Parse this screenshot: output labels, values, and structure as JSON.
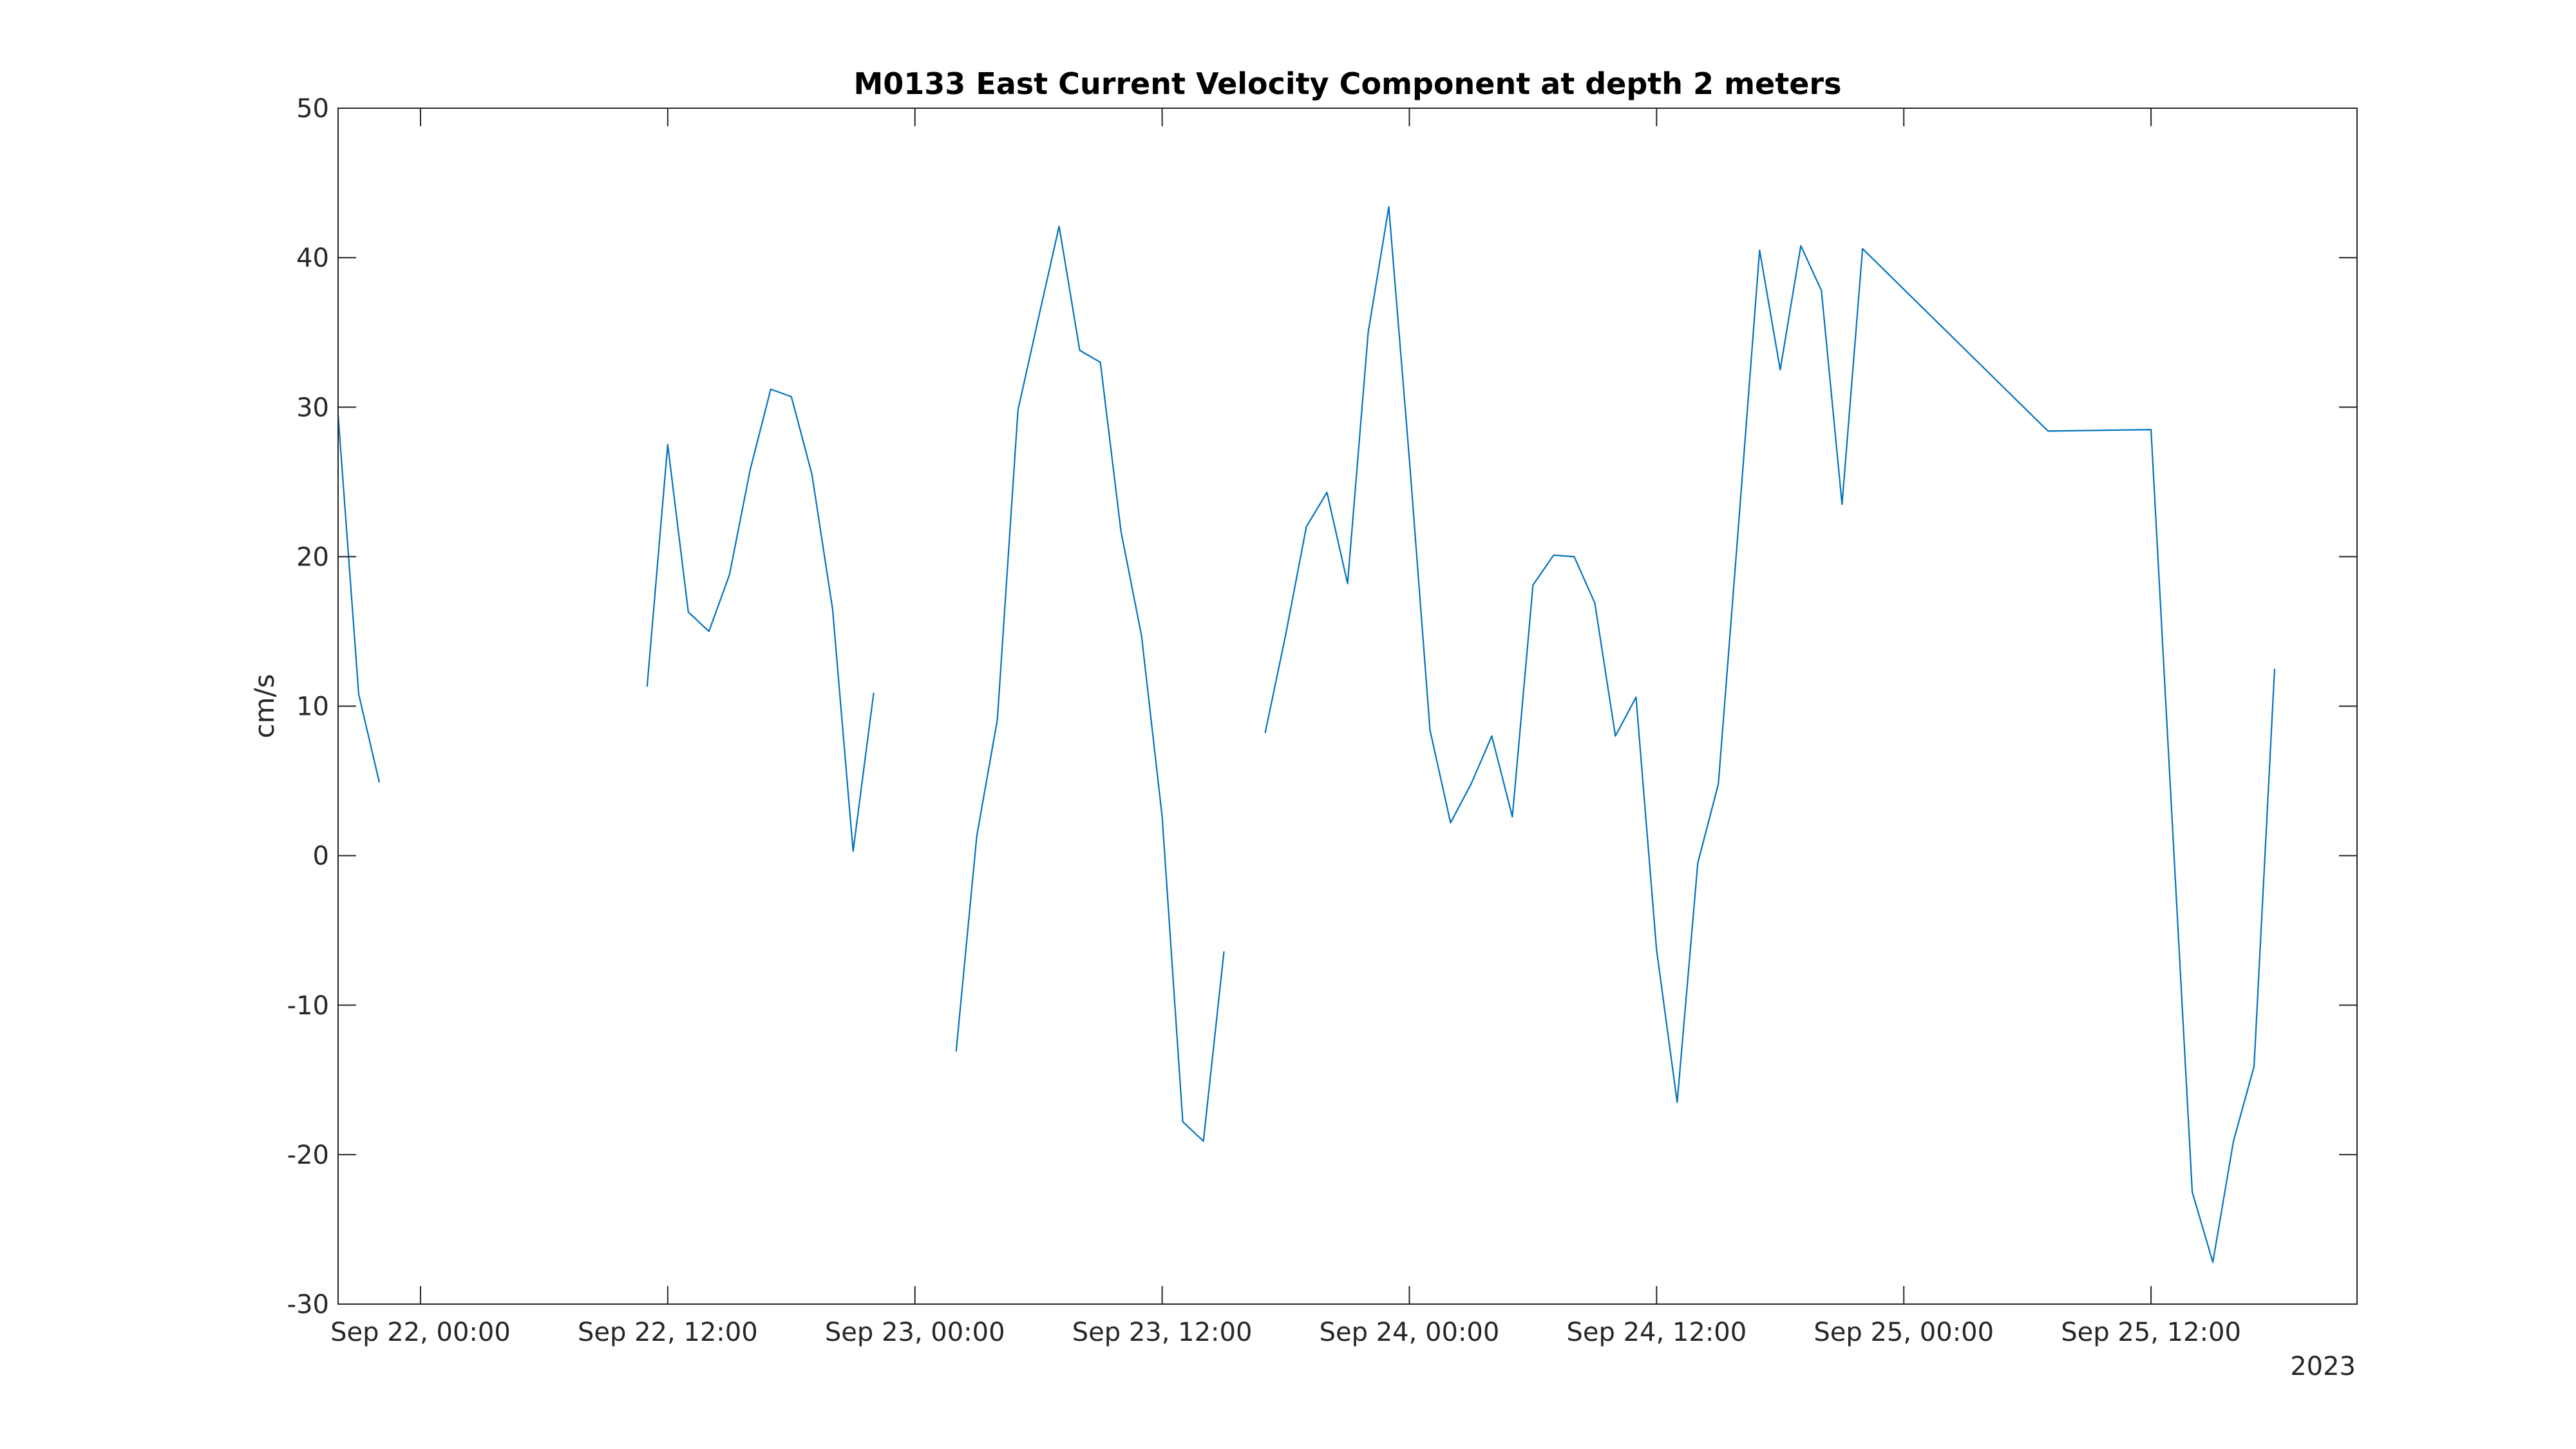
{
  "chart_data": {
    "type": "line",
    "title": "M0133 East Current Velocity Component at depth 2 meters",
    "xlabel": "",
    "ylabel": "cm/s",
    "x_year_label": "2023",
    "xlim": [
      "2023-09-21 20:00",
      "2023-09-25 22:00"
    ],
    "ylim": [
      -30,
      50
    ],
    "yticks": [
      -30,
      -20,
      -10,
      0,
      10,
      20,
      30,
      40,
      50
    ],
    "xticks": [
      {
        "t": "2023-09-22 00:00",
        "label": "Sep 22, 00:00"
      },
      {
        "t": "2023-09-22 12:00",
        "label": "Sep 22, 12:00"
      },
      {
        "t": "2023-09-23 00:00",
        "label": "Sep 23, 00:00"
      },
      {
        "t": "2023-09-23 12:00",
        "label": "Sep 23, 12:00"
      },
      {
        "t": "2023-09-24 00:00",
        "label": "Sep 24, 00:00"
      },
      {
        "t": "2023-09-24 12:00",
        "label": "Sep 24, 12:00"
      },
      {
        "t": "2023-09-25 00:00",
        "label": "Sep 25, 00:00"
      },
      {
        "t": "2023-09-25 12:00",
        "label": "Sep 25, 12:00"
      }
    ],
    "grid": false,
    "line_color": "#0072BD",
    "series": [
      {
        "segments": [
          [
            {
              "t": "2023-09-21 20:00",
              "y": 29.5
            },
            {
              "t": "2023-09-21 21:00",
              "y": 10.8
            },
            {
              "t": "2023-09-21 22:00",
              "y": 4.9
            }
          ],
          [
            {
              "t": "2023-09-22 11:00",
              "y": 11.3
            },
            {
              "t": "2023-09-22 12:00",
              "y": 27.5
            },
            {
              "t": "2023-09-22 13:00",
              "y": 16.3
            },
            {
              "t": "2023-09-22 14:00",
              "y": 15.0
            },
            {
              "t": "2023-09-22 15:00",
              "y": 18.8
            },
            {
              "t": "2023-09-22 16:00",
              "y": 25.8
            },
            {
              "t": "2023-09-22 17:00",
              "y": 31.2
            },
            {
              "t": "2023-09-22 18:00",
              "y": 30.7
            },
            {
              "t": "2023-09-22 19:00",
              "y": 25.5
            },
            {
              "t": "2023-09-22 20:00",
              "y": 16.5
            },
            {
              "t": "2023-09-22 21:00",
              "y": 0.3
            },
            {
              "t": "2023-09-22 22:00",
              "y": 10.9
            }
          ],
          [
            {
              "t": "2023-09-23 02:00",
              "y": -13.1
            },
            {
              "t": "2023-09-23 03:00",
              "y": 1.3
            },
            {
              "t": "2023-09-23 04:00",
              "y": 9.1
            },
            {
              "t": "2023-09-23 05:00",
              "y": 29.8
            },
            {
              "t": "2023-09-23 06:00",
              "y": 36.0
            },
            {
              "t": "2023-09-23 07:00",
              "y": 42.1
            },
            {
              "t": "2023-09-23 08:00",
              "y": 33.8
            },
            {
              "t": "2023-09-23 09:00",
              "y": 33.0
            },
            {
              "t": "2023-09-23 10:00",
              "y": 21.7
            },
            {
              "t": "2023-09-23 11:00",
              "y": 14.7
            },
            {
              "t": "2023-09-23 12:00",
              "y": 2.6
            },
            {
              "t": "2023-09-23 13:00",
              "y": -17.8
            },
            {
              "t": "2023-09-23 14:00",
              "y": -19.1
            },
            {
              "t": "2023-09-23 15:00",
              "y": -6.4
            }
          ],
          [
            {
              "t": "2023-09-23 17:00",
              "y": 8.2
            },
            {
              "t": "2023-09-23 18:00",
              "y": 14.8
            },
            {
              "t": "2023-09-23 19:00",
              "y": 22.0
            },
            {
              "t": "2023-09-23 20:00",
              "y": 24.3
            },
            {
              "t": "2023-09-23 21:00",
              "y": 18.2
            },
            {
              "t": "2023-09-23 22:00",
              "y": 35.0
            },
            {
              "t": "2023-09-23 23:00",
              "y": 43.4
            },
            {
              "t": "2023-09-24 00:00",
              "y": 26.5
            },
            {
              "t": "2023-09-24 01:00",
              "y": 8.4
            },
            {
              "t": "2023-09-24 02:00",
              "y": 2.2
            },
            {
              "t": "2023-09-24 03:00",
              "y": 4.8
            },
            {
              "t": "2023-09-24 04:00",
              "y": 8.0
            },
            {
              "t": "2023-09-24 05:00",
              "y": 2.6
            },
            {
              "t": "2023-09-24 06:00",
              "y": 18.1
            },
            {
              "t": "2023-09-24 07:00",
              "y": 20.1
            },
            {
              "t": "2023-09-24 08:00",
              "y": 20.0
            },
            {
              "t": "2023-09-24 09:00",
              "y": 16.9
            },
            {
              "t": "2023-09-24 10:00",
              "y": 8.0
            },
            {
              "t": "2023-09-24 11:00",
              "y": 10.6
            },
            {
              "t": "2023-09-24 12:00",
              "y": -6.3
            },
            {
              "t": "2023-09-24 13:00",
              "y": -16.5
            },
            {
              "t": "2023-09-24 14:00",
              "y": -0.5
            },
            {
              "t": "2023-09-24 15:00",
              "y": 4.8
            },
            {
              "t": "2023-09-24 16:00",
              "y": 22.5
            },
            {
              "t": "2023-09-24 17:00",
              "y": 40.5
            },
            {
              "t": "2023-09-24 18:00",
              "y": 32.5
            },
            {
              "t": "2023-09-24 19:00",
              "y": 40.8
            },
            {
              "t": "2023-09-24 20:00",
              "y": 37.8
            },
            {
              "t": "2023-09-24 21:00",
              "y": 23.5
            },
            {
              "t": "2023-09-24 22:00",
              "y": 40.6
            },
            {
              "t": "2023-09-25 07:00",
              "y": 28.4
            },
            {
              "t": "2023-09-25 12:00",
              "y": 28.5
            },
            {
              "t": "2023-09-25 14:00",
              "y": -22.5
            },
            {
              "t": "2023-09-25 15:00",
              "y": -27.2
            },
            {
              "t": "2023-09-25 16:00",
              "y": -19.1
            },
            {
              "t": "2023-09-25 17:00",
              "y": -14.1
            },
            {
              "t": "2023-09-25 18:00",
              "y": 12.5
            }
          ]
        ]
      }
    ]
  }
}
